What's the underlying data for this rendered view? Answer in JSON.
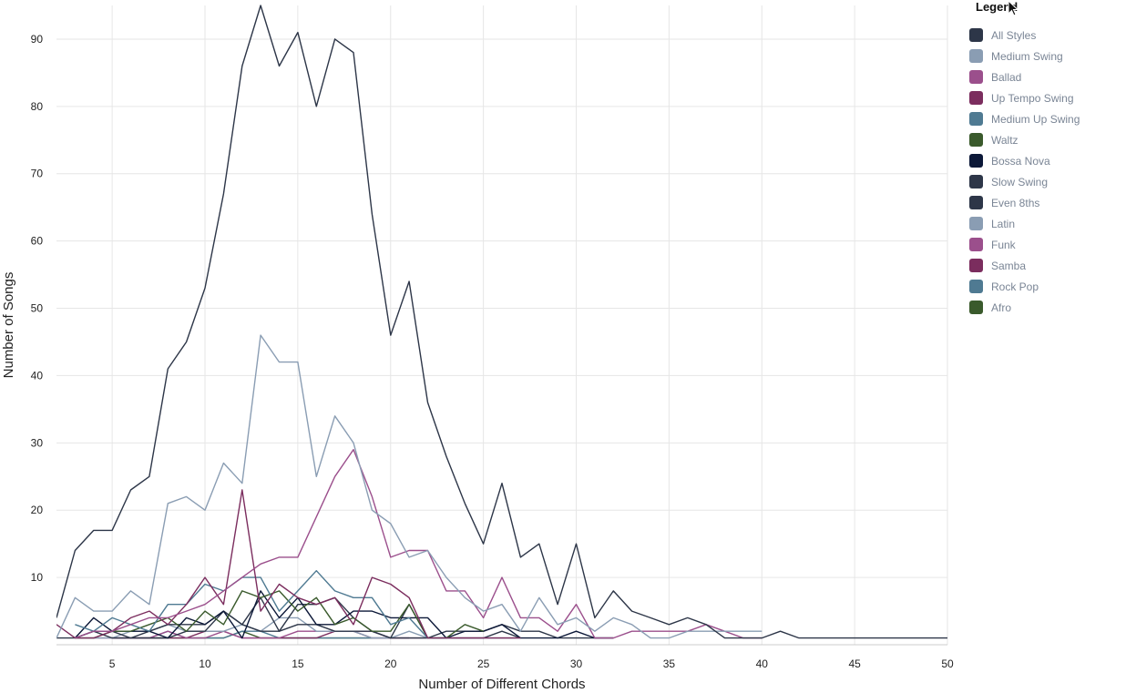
{
  "chart_data": {
    "type": "line",
    "xlabel": "Number of Different Chords",
    "ylabel": "Number of Songs",
    "xlim": [
      2,
      50
    ],
    "ylim": [
      0,
      95
    ],
    "xticks": [
      5,
      10,
      15,
      20,
      25,
      30,
      35,
      40,
      45,
      50
    ],
    "yticks": [
      10,
      20,
      30,
      40,
      50,
      60,
      70,
      80,
      90
    ],
    "legend_title": "Legend",
    "legend_position": "right",
    "grid": true,
    "series": [
      {
        "name": "All Styles",
        "color": "#2d3648",
        "x": [
          2,
          3,
          4,
          5,
          6,
          7,
          8,
          9,
          10,
          11,
          12,
          13,
          14,
          15,
          16,
          17,
          18,
          19,
          20,
          21,
          22,
          23,
          24,
          25,
          26,
          27,
          28,
          29,
          30,
          31,
          32,
          33,
          34,
          35,
          36,
          37,
          38,
          39,
          40,
          41,
          42,
          43,
          44,
          45,
          46,
          47,
          48,
          49,
          50
        ],
        "y": [
          4,
          14,
          17,
          17,
          23,
          25,
          41,
          45,
          53,
          67,
          86,
          95,
          86,
          91,
          80,
          90,
          88,
          64,
          46,
          54,
          36,
          28,
          21,
          15,
          24,
          13,
          15,
          6,
          15,
          4,
          8,
          5,
          4,
          3,
          4,
          3,
          1,
          1,
          1,
          2,
          1,
          1,
          1,
          1,
          1,
          1,
          1,
          1,
          1
        ]
      },
      {
        "name": "Medium Swing",
        "color": "#8a9db3",
        "x": [
          2,
          3,
          4,
          5,
          6,
          7,
          8,
          9,
          10,
          11,
          12,
          13,
          14,
          15,
          16,
          17,
          18,
          19,
          20,
          21,
          22,
          23,
          24,
          25,
          26,
          27,
          28,
          29,
          30,
          31,
          32,
          33,
          34,
          35,
          36,
          37,
          38,
          39,
          40
        ],
        "y": [
          1,
          7,
          5,
          5,
          8,
          6,
          21,
          22,
          20,
          27,
          24,
          46,
          42,
          42,
          25,
          34,
          30,
          20,
          18,
          13,
          14,
          10,
          7,
          5,
          6,
          2,
          7,
          3,
          4,
          2,
          4,
          3,
          1,
          1,
          2,
          2,
          2,
          2,
          2
        ]
      },
      {
        "name": "Ballad",
        "color": "#9b4f8c",
        "x": [
          3,
          4,
          5,
          6,
          7,
          8,
          9,
          10,
          11,
          12,
          13,
          14,
          15,
          16,
          17,
          18,
          19,
          20,
          21,
          22,
          23,
          24,
          25,
          26,
          27,
          28,
          29,
          30,
          31,
          32,
          33,
          34,
          35,
          36,
          37,
          38,
          39,
          40
        ],
        "y": [
          1,
          2,
          2,
          3,
          4,
          4,
          5,
          6,
          8,
          10,
          12,
          13,
          13,
          19,
          25,
          29,
          22,
          13,
          14,
          14,
          8,
          8,
          4,
          10,
          4,
          4,
          2,
          6,
          1,
          1,
          2,
          2,
          2,
          2,
          3,
          2,
          1,
          1
        ]
      },
      {
        "name": "Up Tempo Swing",
        "color": "#7b2d5e",
        "x": [
          2,
          3,
          4,
          5,
          6,
          7,
          8,
          9,
          10,
          11,
          12,
          13,
          14,
          15,
          16,
          17,
          18,
          19,
          20,
          21,
          22,
          23,
          24,
          25,
          26,
          27
        ],
        "y": [
          3,
          1,
          1,
          2,
          4,
          5,
          3,
          6,
          10,
          6,
          23,
          5,
          9,
          7,
          6,
          7,
          3,
          10,
          9,
          7,
          1,
          1,
          1,
          1,
          1,
          1
        ]
      },
      {
        "name": "Medium Up Swing",
        "color": "#4f7a92",
        "x": [
          3,
          4,
          5,
          6,
          7,
          8,
          9,
          10,
          11,
          12,
          13,
          14,
          15,
          16,
          17,
          18,
          19,
          20,
          21,
          22,
          23,
          24,
          25,
          26,
          27
        ],
        "y": [
          3,
          2,
          4,
          3,
          2,
          6,
          6,
          9,
          8,
          10,
          10,
          5,
          8,
          11,
          8,
          7,
          7,
          3,
          4,
          1,
          1,
          1,
          1,
          1,
          1
        ]
      },
      {
        "name": "Waltz",
        "color": "#3a5a2c",
        "x": [
          3,
          4,
          5,
          6,
          7,
          8,
          9,
          10,
          11,
          12,
          13,
          14,
          15,
          16,
          17,
          18,
          19,
          20,
          21,
          22,
          23,
          24,
          25
        ],
        "y": [
          1,
          1,
          2,
          2,
          3,
          4,
          2,
          5,
          3,
          8,
          7,
          8,
          5,
          7,
          3,
          4,
          2,
          2,
          6,
          1,
          1,
          3,
          2
        ]
      },
      {
        "name": "Bossa Nova",
        "color": "#0c1838",
        "x": [
          3,
          4,
          5,
          6,
          7,
          8,
          9,
          10,
          11,
          12,
          13,
          14,
          15,
          16,
          17,
          18,
          19,
          20,
          21,
          22,
          23,
          24,
          25,
          26,
          27,
          28,
          29,
          30,
          31,
          32
        ],
        "y": [
          1,
          4,
          2,
          2,
          2,
          1,
          4,
          3,
          5,
          1,
          8,
          4,
          7,
          3,
          3,
          5,
          5,
          4,
          4,
          4,
          1,
          2,
          2,
          3,
          1,
          1,
          1,
          2,
          1,
          1
        ]
      },
      {
        "name": "Slow Swing",
        "color": "#2d3648",
        "x": [
          3,
          4,
          5,
          6,
          7,
          8,
          9,
          10,
          11,
          12,
          13,
          14,
          15,
          16,
          17,
          18,
          19,
          20,
          21,
          22,
          23,
          24,
          25,
          26,
          27
        ],
        "y": [
          1,
          2,
          1,
          1,
          1,
          1,
          2,
          2,
          5,
          3,
          7,
          2,
          6,
          6,
          7,
          4,
          2,
          1,
          6,
          1,
          1,
          1,
          1,
          2,
          1
        ]
      },
      {
        "name": "Even 8ths",
        "color": "#2d3648",
        "x": [
          2,
          3,
          4,
          5,
          6,
          7,
          8,
          9,
          10,
          11,
          12,
          13,
          14,
          15,
          16,
          17,
          18,
          19,
          20,
          21,
          22,
          23,
          24,
          25,
          26,
          27,
          28,
          29,
          30,
          31,
          32
        ],
        "y": [
          1,
          1,
          2,
          2,
          1,
          2,
          3,
          3,
          3,
          5,
          3,
          2,
          2,
          3,
          3,
          2,
          2,
          2,
          1,
          1,
          1,
          2,
          2,
          2,
          3,
          2,
          2,
          1,
          1,
          1,
          1
        ]
      },
      {
        "name": "Latin",
        "color": "#8a9db3",
        "x": [
          3,
          4,
          5,
          6,
          7,
          8,
          9,
          10,
          11,
          12,
          13,
          14,
          15,
          16,
          17,
          18,
          19,
          20,
          21,
          22
        ],
        "y": [
          1,
          1,
          1,
          2,
          2,
          3,
          2,
          2,
          2,
          3,
          2,
          4,
          4,
          2,
          2,
          2,
          1,
          1,
          2,
          1
        ]
      },
      {
        "name": "Funk",
        "color": "#9b4f8c",
        "x": [
          4,
          5,
          6,
          7,
          8,
          9,
          10,
          11,
          12,
          13,
          14,
          15,
          16,
          17,
          18,
          19,
          20,
          21,
          22
        ],
        "y": [
          1,
          1,
          1,
          1,
          2,
          1,
          1,
          2,
          1,
          1,
          1,
          2,
          2,
          2,
          2,
          2,
          1,
          1,
          1
        ]
      },
      {
        "name": "Samba",
        "color": "#7b2d5e",
        "x": [
          5,
          6,
          7,
          8,
          9,
          10,
          11,
          12,
          13,
          14,
          15,
          16,
          17,
          18,
          19,
          20,
          21
        ],
        "y": [
          1,
          1,
          1,
          1,
          1,
          2,
          2,
          1,
          1,
          1,
          1,
          1,
          2,
          2,
          1,
          1,
          1
        ]
      },
      {
        "name": "Rock Pop",
        "color": "#4f7a92",
        "x": [
          5,
          6,
          7,
          8,
          9,
          10,
          11,
          12,
          13,
          14,
          15,
          16,
          17,
          18,
          19,
          20
        ],
        "y": [
          1,
          1,
          1,
          2,
          1,
          1,
          1,
          2,
          2,
          1,
          1,
          1,
          1,
          1,
          1,
          1
        ]
      },
      {
        "name": "Afro",
        "color": "#3a5a2c",
        "x": [
          6,
          7,
          8,
          9,
          10,
          11,
          12,
          13,
          14,
          15,
          16,
          17,
          18,
          19
        ],
        "y": [
          1,
          1,
          1,
          1,
          1,
          1,
          2,
          1,
          1,
          1,
          1,
          1,
          1,
          1
        ]
      }
    ]
  }
}
